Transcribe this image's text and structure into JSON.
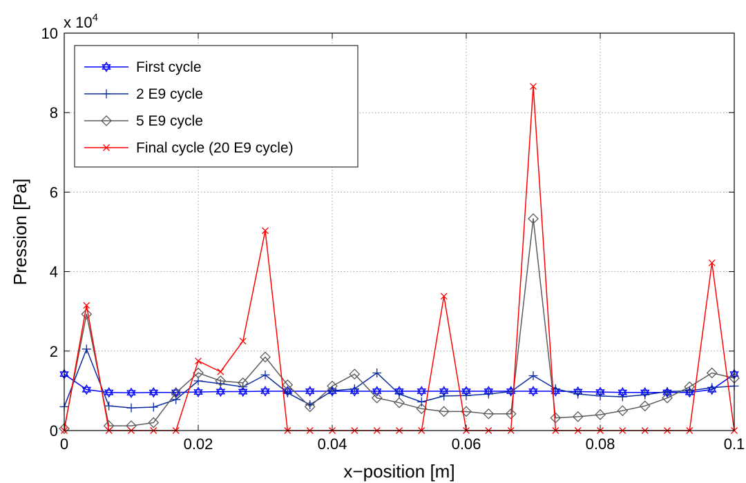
{
  "chart_data": {
    "type": "line",
    "title": "",
    "xlabel": "x−position [m]",
    "ylabel": "Pression [Pa]",
    "exponent_label": "x 10",
    "exponent_power": "4",
    "xlim": [
      0,
      0.1
    ],
    "ylim": [
      0,
      10
    ],
    "xticks": [
      0,
      0.02,
      0.04,
      0.06,
      0.08,
      0.1
    ],
    "xtick_labels": [
      "0",
      "0.02",
      "0.04",
      "0.06",
      "0.08",
      "0.1"
    ],
    "yticks": [
      0,
      2,
      4,
      6,
      8,
      10
    ],
    "ytick_labels": [
      "0",
      "2",
      "4",
      "6",
      "8",
      "10"
    ],
    "grid": true,
    "legend_position": "top-left",
    "x": [
      0,
      0.00333,
      0.00667,
      0.01,
      0.01333,
      0.01667,
      0.02,
      0.02333,
      0.02667,
      0.03,
      0.03333,
      0.03667,
      0.04,
      0.04333,
      0.04667,
      0.05,
      0.05333,
      0.05667,
      0.06,
      0.06333,
      0.06667,
      0.07,
      0.07333,
      0.07667,
      0.08,
      0.08333,
      0.08667,
      0.09,
      0.09333,
      0.09667,
      0.1
    ],
    "series": [
      {
        "name": "First cycle",
        "color": "#0000ff",
        "marker": "hexagram",
        "values": [
          1.42,
          1.03,
          0.96,
          0.95,
          0.96,
          0.96,
          0.97,
          0.98,
          0.98,
          0.99,
          0.99,
          0.99,
          0.99,
          0.99,
          0.99,
          0.99,
          0.99,
          0.99,
          0.99,
          0.99,
          0.99,
          0.99,
          0.99,
          0.98,
          0.97,
          0.96,
          0.96,
          0.96,
          0.96,
          1.03,
          1.42
        ]
      },
      {
        "name": "2 E9 cycle",
        "color": "#0a2aa0",
        "marker": "plus",
        "values": [
          0.6,
          2.05,
          0.62,
          0.57,
          0.59,
          0.78,
          1.25,
          1.18,
          1.1,
          1.4,
          0.95,
          0.65,
          1.0,
          1.05,
          1.45,
          0.92,
          0.72,
          0.87,
          0.88,
          0.92,
          0.98,
          1.38,
          1.05,
          0.92,
          0.87,
          0.85,
          0.9,
          0.98,
          1.0,
          1.08,
          1.12
        ]
      },
      {
        "name": "5 E9 cycle",
        "color": "#5a5a5a",
        "marker": "diamond",
        "values": [
          0.05,
          2.93,
          0.12,
          0.12,
          0.2,
          0.95,
          1.45,
          1.25,
          1.2,
          1.85,
          1.15,
          0.6,
          1.12,
          1.42,
          0.82,
          0.7,
          0.55,
          0.48,
          0.48,
          0.42,
          0.42,
          5.33,
          0.32,
          0.35,
          0.4,
          0.5,
          0.62,
          0.82,
          1.1,
          1.45,
          1.32
        ]
      },
      {
        "name": "Final cycle (20 E9 cycle)",
        "color": "#ff0000",
        "marker": "x",
        "values": [
          0,
          3.15,
          0,
          0,
          0,
          0,
          1.75,
          1.48,
          2.25,
          5.03,
          0,
          0,
          0,
          0,
          0,
          0,
          0,
          3.38,
          0,
          0,
          0,
          8.66,
          0,
          0,
          0,
          0,
          0,
          0,
          0,
          4.22,
          0
        ]
      }
    ]
  }
}
